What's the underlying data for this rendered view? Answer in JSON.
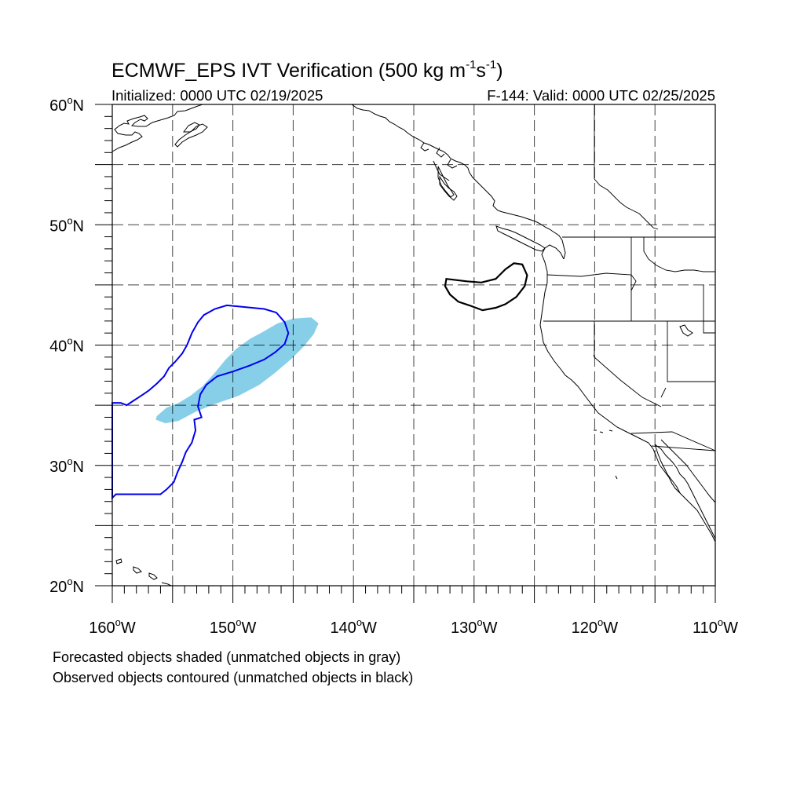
{
  "title": {
    "main": "ECMWF_EPS IVT Verification (500 kg m",
    "exp1": "-1",
    "mid": "s",
    "exp2": "-1",
    "close": ")"
  },
  "subtitle": {
    "initialized": "Initialized: 0000 UTC 02/19/2025",
    "valid": "F-144: Valid: 0000 UTC 02/25/2025"
  },
  "axes": {
    "lon_range": [
      -160,
      -110
    ],
    "lat_range": [
      20,
      60
    ],
    "lon_ticks": [
      {
        "value": -160,
        "label": "160",
        "deg": "o",
        "hemi": "W"
      },
      {
        "value": -150,
        "label": "150",
        "deg": "o",
        "hemi": "W"
      },
      {
        "value": -140,
        "label": "140",
        "deg": "o",
        "hemi": "W"
      },
      {
        "value": -130,
        "label": "130",
        "deg": "o",
        "hemi": "W"
      },
      {
        "value": -120,
        "label": "120",
        "deg": "o",
        "hemi": "W"
      },
      {
        "value": -110,
        "label": "110",
        "deg": "o",
        "hemi": "W"
      }
    ],
    "lat_ticks": [
      {
        "value": 60,
        "label": "60",
        "deg": "o",
        "hemi": "N"
      },
      {
        "value": 50,
        "label": "50",
        "deg": "o",
        "hemi": "N"
      },
      {
        "value": 40,
        "label": "40",
        "deg": "o",
        "hemi": "N"
      },
      {
        "value": 30,
        "label": "30",
        "deg": "o",
        "hemi": "N"
      },
      {
        "value": 20,
        "label": "20",
        "deg": "o",
        "hemi": "N"
      }
    ],
    "grid_lons": [
      -155,
      -150,
      -145,
      -140,
      -135,
      -130,
      -125,
      -120,
      -115
    ],
    "grid_lats": [
      55,
      50,
      45,
      40,
      35,
      30,
      25
    ]
  },
  "legend_notes": [
    "Forecasted objects shaded (unmatched objects in gray)",
    "Observed objects contoured (unmatched objects in black)"
  ],
  "colors": {
    "forecast_matched": "#87cfe9",
    "observed_matched": "#0000ee",
    "observed_unmatched": "#000000"
  },
  "objects": {
    "forecast_shaded": {
      "status": "matched",
      "polygon": [
        [
          -156.3,
          34.1
        ],
        [
          -155.5,
          34.8
        ],
        [
          -154.5,
          35.2
        ],
        [
          -153.5,
          35.8
        ],
        [
          -152.5,
          36.6
        ],
        [
          -151.5,
          37.7
        ],
        [
          -150.6,
          38.8
        ],
        [
          -149.7,
          39.7
        ],
        [
          -148.6,
          40.5
        ],
        [
          -147.5,
          41.1
        ],
        [
          -146.3,
          41.8
        ],
        [
          -145.0,
          42.2
        ],
        [
          -143.5,
          42.3
        ],
        [
          -142.9,
          41.8
        ],
        [
          -143.3,
          40.9
        ],
        [
          -144.2,
          39.8
        ],
        [
          -145.2,
          38.8
        ],
        [
          -146.5,
          37.7
        ],
        [
          -147.8,
          36.7
        ],
        [
          -149.5,
          35.8
        ],
        [
          -151.5,
          35.1
        ],
        [
          -153.0,
          34.5
        ],
        [
          -154.5,
          33.7
        ],
        [
          -155.6,
          33.5
        ],
        [
          -156.4,
          33.8
        ]
      ]
    },
    "observed_matched_contour": {
      "status": "matched",
      "polygon": [
        [
          -160.0,
          35.2
        ],
        [
          -159.3,
          35.2
        ],
        [
          -158.8,
          35.0
        ],
        [
          -158.2,
          35.4
        ],
        [
          -157.6,
          35.8
        ],
        [
          -157.0,
          36.2
        ],
        [
          -156.3,
          36.8
        ],
        [
          -155.7,
          37.4
        ],
        [
          -155.3,
          38.1
        ],
        [
          -154.8,
          38.6
        ],
        [
          -154.2,
          39.3
        ],
        [
          -153.8,
          40.0
        ],
        [
          -153.4,
          41.0
        ],
        [
          -152.9,
          41.9
        ],
        [
          -152.4,
          42.5
        ],
        [
          -151.5,
          43.0
        ],
        [
          -150.5,
          43.3
        ],
        [
          -149.4,
          43.2
        ],
        [
          -148.4,
          43.1
        ],
        [
          -147.4,
          43.0
        ],
        [
          -146.4,
          42.7
        ],
        [
          -145.7,
          41.9
        ],
        [
          -145.4,
          41.0
        ],
        [
          -145.7,
          40.1
        ],
        [
          -146.5,
          39.4
        ],
        [
          -147.4,
          38.8
        ],
        [
          -148.6,
          38.3
        ],
        [
          -150.0,
          37.8
        ],
        [
          -151.3,
          37.4
        ],
        [
          -152.2,
          36.7
        ],
        [
          -152.7,
          35.9
        ],
        [
          -152.9,
          34.9
        ],
        [
          -152.6,
          34.0
        ],
        [
          -153.2,
          33.8
        ],
        [
          -153.1,
          32.9
        ],
        [
          -153.4,
          31.9
        ],
        [
          -153.9,
          31.1
        ],
        [
          -154.2,
          30.3
        ],
        [
          -154.6,
          29.4
        ],
        [
          -154.9,
          28.6
        ],
        [
          -155.5,
          28.0
        ],
        [
          -156.0,
          27.6
        ],
        [
          -157.2,
          27.6
        ],
        [
          -158.5,
          27.6
        ],
        [
          -159.7,
          27.6
        ],
        [
          -160.0,
          27.3
        ]
      ]
    },
    "observed_unmatched_contour": {
      "status": "unmatched",
      "polygon": [
        [
          -132.3,
          45.5
        ],
        [
          -130.6,
          45.3
        ],
        [
          -129.4,
          45.2
        ],
        [
          -128.2,
          45.5
        ],
        [
          -127.4,
          46.3
        ],
        [
          -126.7,
          46.8
        ],
        [
          -126.0,
          46.7
        ],
        [
          -125.6,
          45.8
        ],
        [
          -125.8,
          44.9
        ],
        [
          -126.5,
          44.0
        ],
        [
          -127.4,
          43.4
        ],
        [
          -128.2,
          43.1
        ],
        [
          -129.3,
          42.9
        ],
        [
          -130.4,
          43.3
        ],
        [
          -131.3,
          43.6
        ],
        [
          -132.0,
          44.2
        ],
        [
          -132.4,
          44.9
        ]
      ]
    }
  }
}
